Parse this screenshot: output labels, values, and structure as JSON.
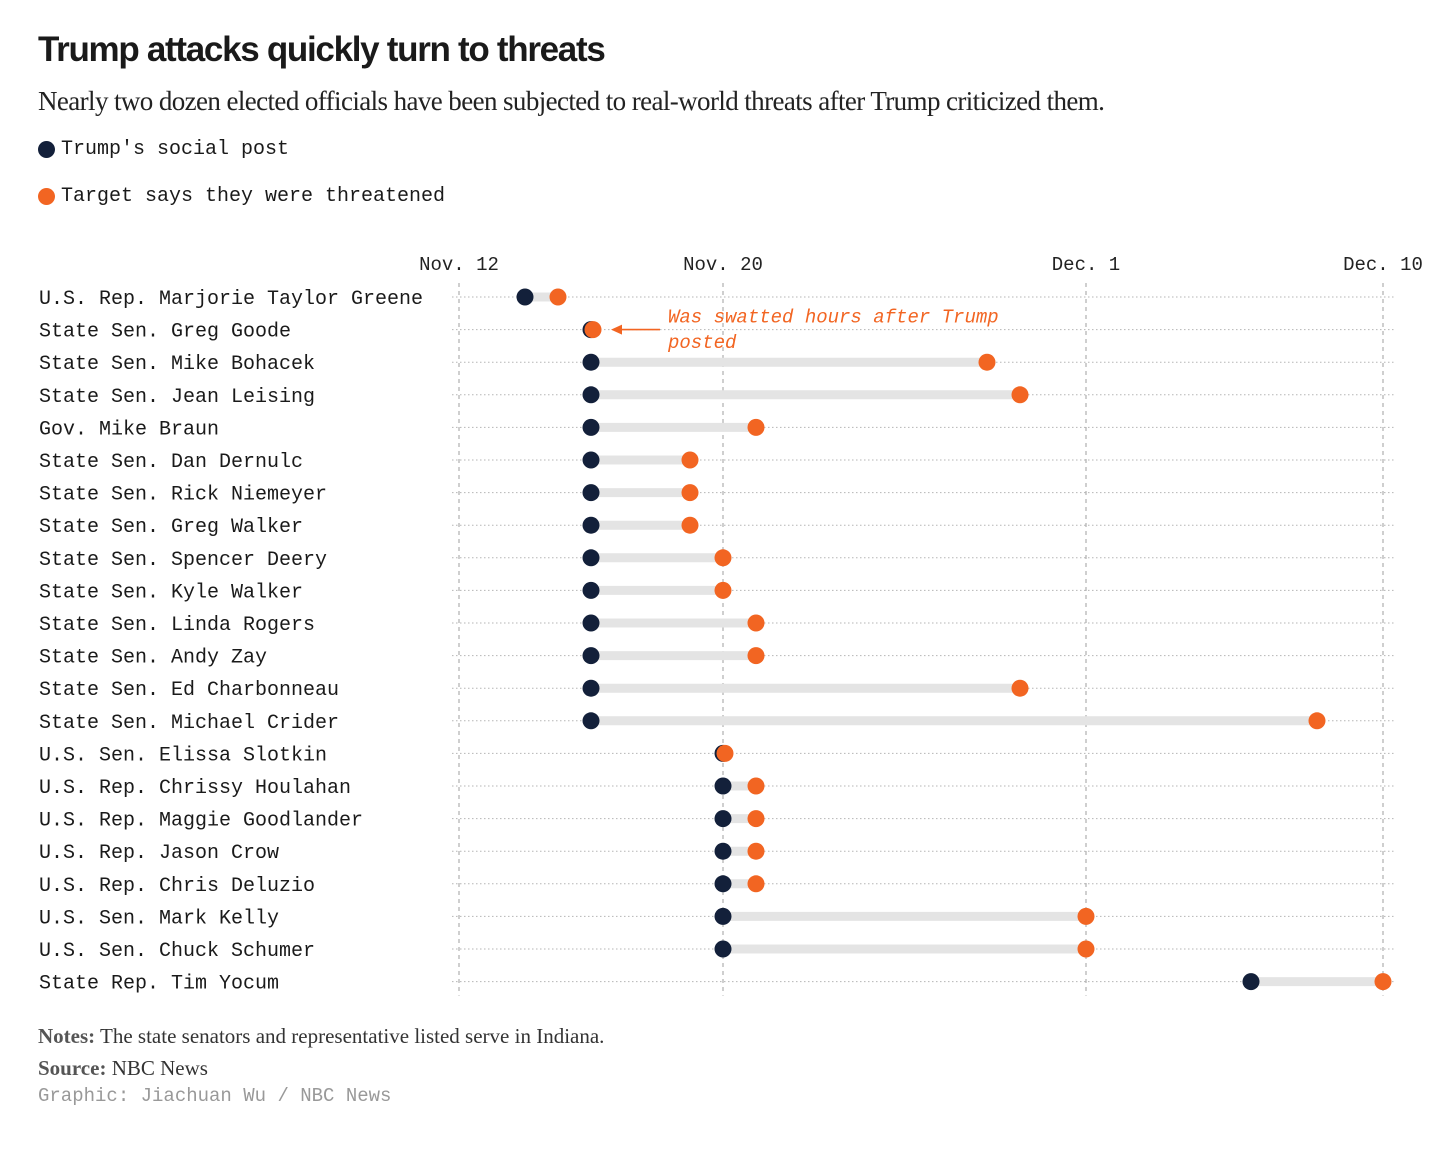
{
  "title": "Trump attacks quickly turn to threats",
  "subtitle": "Nearly two dozen elected officials have been subjected to real-world threats after Trump criticized them.",
  "legend": [
    {
      "label": "Trump's social post",
      "color": "#13203a"
    },
    {
      "label": "Target says they were threatened",
      "color": "#f26522"
    }
  ],
  "colors": {
    "post": "#13203a",
    "threat": "#f26522",
    "bar": "#e4e4e4",
    "grid": "#b5b5b5"
  },
  "annotation": {
    "lines": [
      "Was swatted hours after Trump",
      "posted"
    ],
    "target": "State Sen. Greg Goode"
  },
  "notes": {
    "label": "Notes:",
    "text": "The state senators and representative listed serve in Indiana."
  },
  "source": {
    "label": "Source:",
    "text": "NBC News"
  },
  "credit": "Graphic: Jiachuan Wu / NBC News",
  "chart_data": {
    "type": "dumbbell",
    "title": "Trump attacks quickly turn to threats",
    "x_axis_type": "date",
    "xlim": [
      "2025-11-12",
      "2025-12-10"
    ],
    "ticks": [
      {
        "label": "Nov. 12",
        "date": "2025-11-12"
      },
      {
        "label": "Nov. 20",
        "date": "2025-11-20"
      },
      {
        "label": "Dec. 1",
        "date": "2025-12-01"
      },
      {
        "label": "Dec. 10",
        "date": "2025-12-10"
      }
    ],
    "grid": true,
    "series": [
      {
        "name": "Trump's social post",
        "key": "post"
      },
      {
        "name": "Target says they were threatened",
        "key": "threat"
      }
    ],
    "rows": [
      {
        "name": "U.S. Rep. Marjorie Taylor Greene",
        "post": "2025-11-14",
        "threat": "2025-11-15"
      },
      {
        "name": "State Sen. Greg Goode",
        "post": "2025-11-16",
        "threat": "2025-11-16"
      },
      {
        "name": "State Sen. Mike Bohacek",
        "post": "2025-11-16",
        "threat": "2025-11-28"
      },
      {
        "name": "State Sen. Jean Leising",
        "post": "2025-11-16",
        "threat": "2025-11-29"
      },
      {
        "name": "Gov. Mike Braun",
        "post": "2025-11-16",
        "threat": "2025-11-21"
      },
      {
        "name": "State Sen. Dan Dernulc",
        "post": "2025-11-16",
        "threat": "2025-11-19"
      },
      {
        "name": "State Sen. Rick Niemeyer",
        "post": "2025-11-16",
        "threat": "2025-11-19"
      },
      {
        "name": "State Sen. Greg Walker",
        "post": "2025-11-16",
        "threat": "2025-11-19"
      },
      {
        "name": "State Sen. Spencer Deery",
        "post": "2025-11-16",
        "threat": "2025-11-20"
      },
      {
        "name": "State Sen. Kyle Walker",
        "post": "2025-11-16",
        "threat": "2025-11-20"
      },
      {
        "name": "State Sen. Linda Rogers",
        "post": "2025-11-16",
        "threat": "2025-11-21"
      },
      {
        "name": "State Sen. Andy Zay",
        "post": "2025-11-16",
        "threat": "2025-11-21"
      },
      {
        "name": "State Sen. Ed Charbonneau",
        "post": "2025-11-16",
        "threat": "2025-11-29"
      },
      {
        "name": "State Sen. Michael Crider",
        "post": "2025-11-16",
        "threat": "2025-12-08"
      },
      {
        "name": "U.S. Sen. Elissa Slotkin",
        "post": "2025-11-20",
        "threat": "2025-11-20"
      },
      {
        "name": "U.S. Rep. Chrissy Houlahan",
        "post": "2025-11-20",
        "threat": "2025-11-21"
      },
      {
        "name": "U.S. Rep. Maggie Goodlander",
        "post": "2025-11-20",
        "threat": "2025-11-21"
      },
      {
        "name": "U.S. Rep. Jason Crow",
        "post": "2025-11-20",
        "threat": "2025-11-21"
      },
      {
        "name": "U.S. Rep. Chris Deluzio",
        "post": "2025-11-20",
        "threat": "2025-11-21"
      },
      {
        "name": "U.S. Sen. Mark Kelly",
        "post": "2025-11-20",
        "threat": "2025-12-01"
      },
      {
        "name": "U.S. Sen. Chuck Schumer",
        "post": "2025-11-20",
        "threat": "2025-12-01"
      },
      {
        "name": "State Rep. Tim Yocum",
        "post": "2025-12-06",
        "threat": "2025-12-10"
      }
    ]
  }
}
